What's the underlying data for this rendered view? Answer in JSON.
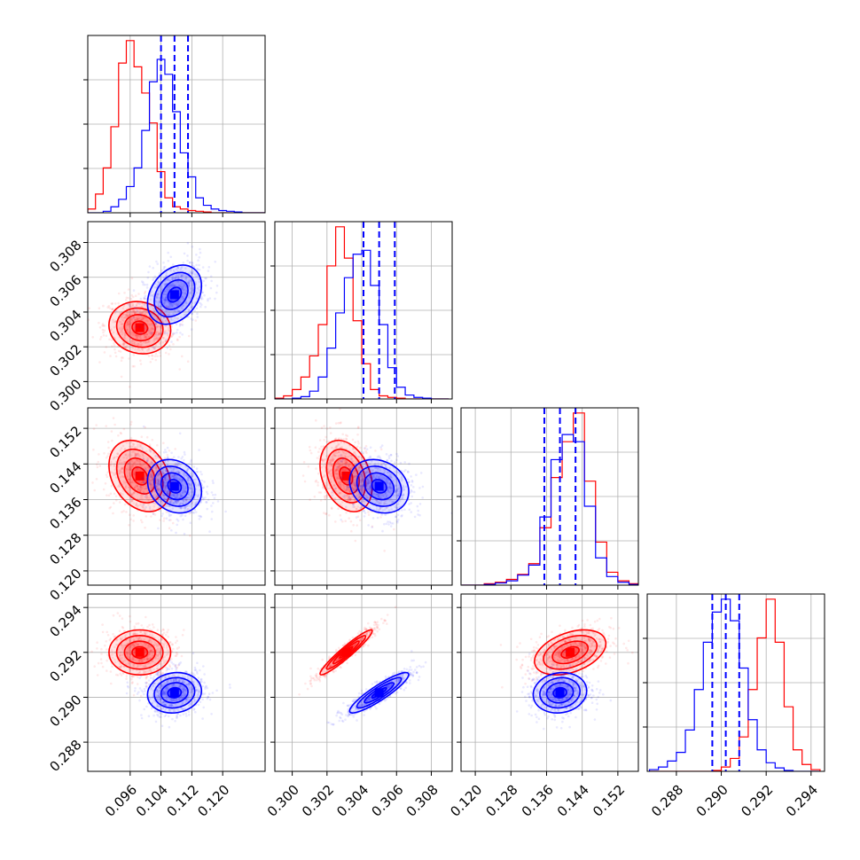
{
  "chart_data": {
    "type": "corner",
    "title": "",
    "grid": true,
    "params": [
      {
        "range": [
          0.085,
          0.131
        ],
        "ticks": [
          0.096,
          0.104,
          0.112,
          0.12
        ],
        "tick_labels": [
          "0.096",
          "0.104",
          "0.112",
          "0.120"
        ]
      },
      {
        "range": [
          0.299,
          0.3092
        ],
        "ticks": [
          0.3,
          0.302,
          0.304,
          0.306,
          0.308
        ],
        "tick_labels": [
          "0.300",
          "0.302",
          "0.304",
          "0.306",
          "0.308"
        ]
      },
      {
        "range": [
          0.1168,
          0.1566
        ],
        "ticks": [
          0.12,
          0.128,
          0.136,
          0.144,
          0.152
        ],
        "tick_labels": [
          "0.120",
          "0.128",
          "0.136",
          "0.144",
          "0.152"
        ]
      },
      {
        "range": [
          0.2867,
          0.2946
        ],
        "ticks": [
          0.288,
          0.29,
          0.292,
          0.294
        ],
        "tick_labels": [
          "0.288",
          "0.290",
          "0.292",
          "0.294"
        ]
      }
    ],
    "colors": {
      "red": "#ff0000",
      "blue": "#0000ff"
    },
    "series": [
      {
        "color": "red",
        "mean": [
          0.0985,
          0.3031,
          0.1413,
          0.292
        ],
        "std": [
          0.004,
          0.00075,
          0.004,
          0.0005
        ],
        "corr": [
          [
            1,
            -0.1,
            -0.3,
            0.0
          ],
          [
            -0.1,
            1,
            -0.3,
            0.95
          ],
          [
            -0.3,
            -0.3,
            1,
            0.4
          ],
          [
            0.0,
            0.95,
            0.4,
            1
          ]
        ]
      },
      {
        "color": "blue",
        "mean": [
          0.1075,
          0.305,
          0.139,
          0.2902
        ],
        "std": [
          0.0035,
          0.00085,
          0.003,
          0.00045
        ],
        "corr": [
          [
            1,
            0.3,
            -0.2,
            0.1
          ],
          [
            0.3,
            1,
            -0.2,
            0.9
          ],
          [
            -0.2,
            -0.2,
            1,
            0.1
          ],
          [
            0.1,
            0.9,
            0.1,
            1
          ]
        ]
      }
    ],
    "histograms": [
      {
        "param": 0,
        "edges": [
          0.085,
          0.087,
          0.089,
          0.091,
          0.093,
          0.095,
          0.097,
          0.099,
          0.101,
          0.103,
          0.105,
          0.107,
          0.109,
          0.111,
          0.113,
          0.115,
          0.117,
          0.119,
          0.121,
          0.123,
          0.125,
          0.127,
          0.129,
          0.131
        ],
        "red": [
          5,
          25,
          60,
          115,
          200,
          230,
          195,
          160,
          120,
          55,
          20,
          8,
          5,
          3,
          2,
          1,
          0,
          0,
          0,
          0,
          0,
          0,
          0
        ],
        "blue": [
          0,
          0,
          2,
          8,
          18,
          35,
          60,
          110,
          175,
          205,
          185,
          135,
          80,
          48,
          20,
          10,
          5,
          3,
          2,
          1,
          0,
          0,
          0
        ]
      },
      {
        "param": 1,
        "edges": [
          0.299,
          0.2995,
          0.3,
          0.3005,
          0.301,
          0.3015,
          0.302,
          0.3025,
          0.303,
          0.3035,
          0.304,
          0.3045,
          0.305,
          0.3055,
          0.306,
          0.3065,
          0.307,
          0.3075,
          0.308,
          0.3085,
          0.309
        ],
        "red": [
          1,
          4,
          12,
          28,
          55,
          95,
          170,
          220,
          180,
          100,
          45,
          12,
          4,
          2,
          1,
          0,
          0,
          0,
          0,
          0
        ],
        "blue": [
          0,
          0,
          1,
          3,
          10,
          28,
          65,
          110,
          155,
          185,
          190,
          145,
          95,
          40,
          15,
          5,
          2,
          1,
          0,
          0
        ]
      },
      {
        "param": 2,
        "edges": [
          0.117,
          0.1195,
          0.122,
          0.1245,
          0.127,
          0.1295,
          0.132,
          0.1345,
          0.137,
          0.1395,
          0.142,
          0.1445,
          0.147,
          0.1495,
          0.152,
          0.1545,
          0.157
        ],
        "red": [
          0,
          0,
          2,
          4,
          8,
          15,
          30,
          80,
          150,
          200,
          240,
          145,
          60,
          18,
          6,
          2
        ],
        "blue": [
          0,
          0,
          1,
          3,
          6,
          14,
          28,
          95,
          175,
          210,
          200,
          110,
          38,
          12,
          4,
          1
        ]
      },
      {
        "param": 3,
        "edges": [
          0.2868,
          0.2872,
          0.2876,
          0.288,
          0.2884,
          0.2888,
          0.2892,
          0.2896,
          0.29,
          0.2904,
          0.2908,
          0.2912,
          0.2916,
          0.292,
          0.2924,
          0.2928,
          0.2932,
          0.2936,
          0.294,
          0.2944
        ],
        "red": [
          0,
          0,
          0,
          0,
          0,
          0,
          0,
          1,
          5,
          15,
          40,
          95,
          155,
          200,
          150,
          75,
          25,
          8,
          2
        ],
        "blue": [
          2,
          5,
          12,
          22,
          48,
          95,
          150,
          185,
          200,
          175,
          120,
          60,
          25,
          10,
          4,
          1,
          0,
          0,
          0
        ]
      }
    ],
    "quantiles_blue": [
      [
        0.104,
        0.1075,
        0.111
      ],
      [
        0.3041,
        0.305,
        0.3059
      ],
      [
        0.1355,
        0.139,
        0.1425
      ],
      [
        0.2896,
        0.2902,
        0.2908
      ]
    ]
  }
}
